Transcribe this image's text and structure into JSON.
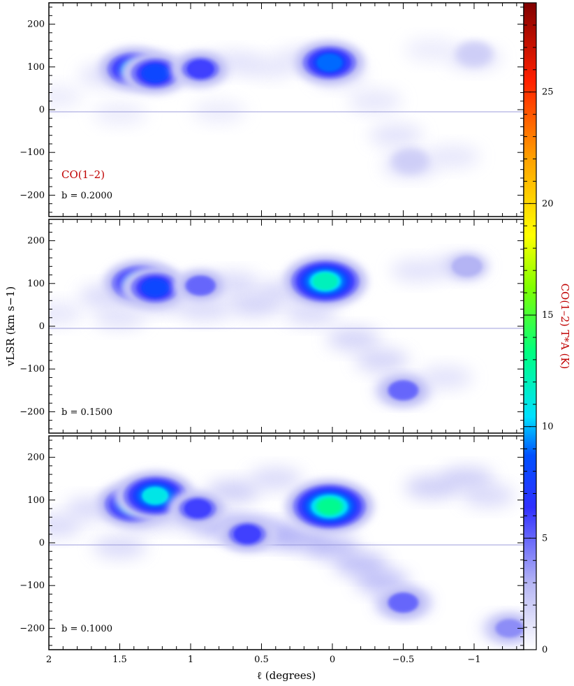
{
  "chart_data": {
    "type": "heatmap",
    "subtype": "position-velocity diagram",
    "x_axis": {
      "label": "ℓ (degrees)",
      "range": [
        2.0,
        -1.35
      ],
      "reversed": true,
      "ticks": [
        2,
        1.5,
        1,
        0.5,
        0,
        -0.5,
        -1
      ],
      "tick_labels": [
        "2",
        "1.5",
        "1",
        "0.5",
        "0",
        "−0.5",
        "−1"
      ]
    },
    "y_axis": {
      "label": "vLSR (km s−1)",
      "range": [
        -250,
        250
      ],
      "ticks": [
        200,
        100,
        0,
        -100,
        -200
      ],
      "tick_labels": [
        "200",
        "100",
        "0",
        "−100",
        "−200"
      ]
    },
    "colorbar": {
      "label": "CO(1–2) T*A (K)",
      "range": [
        0,
        29
      ],
      "ticks": [
        0,
        5,
        10,
        15,
        20,
        25
      ],
      "tick_labels": [
        "0",
        "5",
        "10",
        "15",
        "20",
        "25"
      ],
      "colormap": [
        "#ffffff",
        "#a0a0f0",
        "#0000ff",
        "#00e0ff",
        "#00ff40",
        "#ffff00",
        "#ffa000",
        "#ff2000",
        "#800000"
      ]
    },
    "line_label": "CO(1–2)",
    "panels": [
      {
        "label": "b = 0.2000",
        "features": [
          {
            "l": 1.4,
            "v": 95,
            "peak": 9
          },
          {
            "l": 1.25,
            "v": 85,
            "peak": 8
          },
          {
            "l": 0.93,
            "v": 95,
            "peak": 6
          },
          {
            "l": 0.02,
            "v": 110,
            "peak": 9
          },
          {
            "l": -0.55,
            "v": -120,
            "peak": 2
          },
          {
            "l": -1.0,
            "v": 130,
            "peak": 2
          }
        ]
      },
      {
        "label": "b = 0.1500",
        "features": [
          {
            "l": 1.35,
            "v": 100,
            "peak": 10
          },
          {
            "l": 1.25,
            "v": 90,
            "peak": 8
          },
          {
            "l": 0.93,
            "v": 95,
            "peak": 5
          },
          {
            "l": 0.05,
            "v": 105,
            "peak": 12
          },
          {
            "l": -0.5,
            "v": -150,
            "peak": 5
          },
          {
            "l": -0.95,
            "v": 140,
            "peak": 3
          }
        ]
      },
      {
        "label": "b = 0.1000",
        "features": [
          {
            "l": 1.4,
            "v": 90,
            "peak": 10
          },
          {
            "l": 1.25,
            "v": 110,
            "peak": 11
          },
          {
            "l": 0.95,
            "v": 80,
            "peak": 6
          },
          {
            "l": 0.02,
            "v": 85,
            "peak": 13
          },
          {
            "l": 0.6,
            "v": 20,
            "peak": 6
          },
          {
            "l": -0.5,
            "v": -140,
            "peak": 5
          },
          {
            "l": -1.25,
            "v": -200,
            "peak": 4
          }
        ]
      }
    ]
  }
}
